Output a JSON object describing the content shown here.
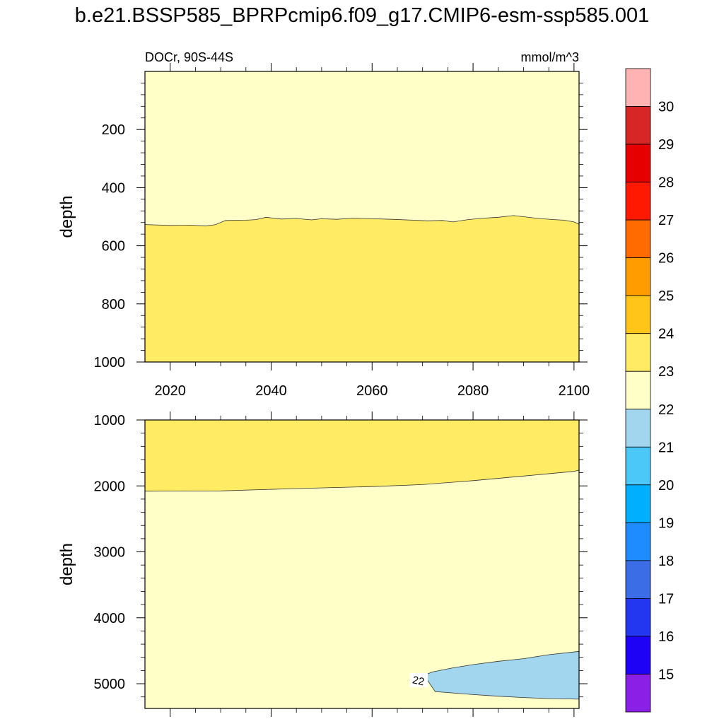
{
  "title": "b.e21.BSSP585_BPRPcmip6.f09_g17.CMIP6-esm-ssp585.001",
  "chart_data": [
    {
      "type": "contour",
      "panel": "upper",
      "left_label": "DOCr, 90S-44S",
      "right_label": "mmol/m^3",
      "xlabel": "",
      "ylabel": "depth",
      "xlim": [
        2015,
        2101
      ],
      "ylim": [
        0,
        1000
      ],
      "y_inverted": true,
      "xticks": [
        2020,
        2040,
        2060,
        2080,
        2100
      ],
      "yticks": [
        200,
        400,
        600,
        800,
        1000
      ],
      "background_band": "22-23",
      "regions": [
        {
          "band": "23-24",
          "description": "deeper than boundary",
          "boundary_year": [
            2015,
            2020,
            2024,
            2027,
            2029,
            2031,
            2035,
            2037,
            2039,
            2042,
            2045,
            2048,
            2050,
            2053,
            2056,
            2060,
            2064,
            2068,
            2071,
            2074,
            2076,
            2079,
            2082,
            2085,
            2088,
            2090,
            2093,
            2096,
            2098,
            2100,
            2101
          ],
          "boundary_depth": [
            527,
            530,
            529,
            532,
            527,
            513,
            512,
            510,
            502,
            508,
            506,
            511,
            507,
            509,
            505,
            507,
            509,
            512,
            514,
            513,
            518,
            510,
            505,
            502,
            496,
            500,
            506,
            510,
            512,
            518,
            526
          ]
        }
      ]
    },
    {
      "type": "contour",
      "panel": "lower",
      "xlabel": "",
      "ylabel": "depth",
      "xlim": [
        2015,
        2101
      ],
      "ylim": [
        1000,
        5375
      ],
      "y_inverted": true,
      "yticks": [
        1000,
        2000,
        3000,
        4000,
        5000
      ],
      "background_band": "22-23",
      "regions": [
        {
          "band": "23-24",
          "description": "shallower than boundary",
          "boundary_year": [
            2015,
            2030,
            2045,
            2060,
            2070,
            2080,
            2090,
            2100,
            2101
          ],
          "boundary_depth": [
            2080,
            2075,
            2040,
            2010,
            1980,
            1920,
            1850,
            1780,
            1760
          ]
        },
        {
          "band": "21-22",
          "description": "closed region near bottom right",
          "outline_year": [
            2101,
            2095,
            2090,
            2085,
            2080,
            2076,
            2072,
            2069.5,
            2071,
            2072.5,
            2076,
            2080,
            2085,
            2090,
            2095,
            2101
          ],
          "outline_depth": [
            4510,
            4560,
            4620,
            4660,
            4710,
            4760,
            4820,
            4895,
            4950,
            5120,
            5140,
            5165,
            5190,
            5210,
            5225,
            5235
          ]
        }
      ],
      "contour_labels": [
        {
          "text": "22",
          "year": 2069.2,
          "depth": 4945
        }
      ]
    }
  ],
  "colorbar": {
    "labels": [
      "15",
      "16",
      "17",
      "18",
      "19",
      "20",
      "21",
      "22",
      "23",
      "24",
      "25",
      "26",
      "27",
      "28",
      "29",
      "30"
    ],
    "colors": [
      "#8a1fe6",
      "#1e02f5",
      "#2336f0",
      "#3a6de6",
      "#1e8cff",
      "#00b0ff",
      "#4bc8f8",
      "#a2d6ef",
      "#ffffc8",
      "#ffeb64",
      "#ffc619",
      "#ff9c00",
      "#ff6b00",
      "#ff1900",
      "#e60000",
      "#d62626",
      "#ffb4b4"
    ]
  }
}
